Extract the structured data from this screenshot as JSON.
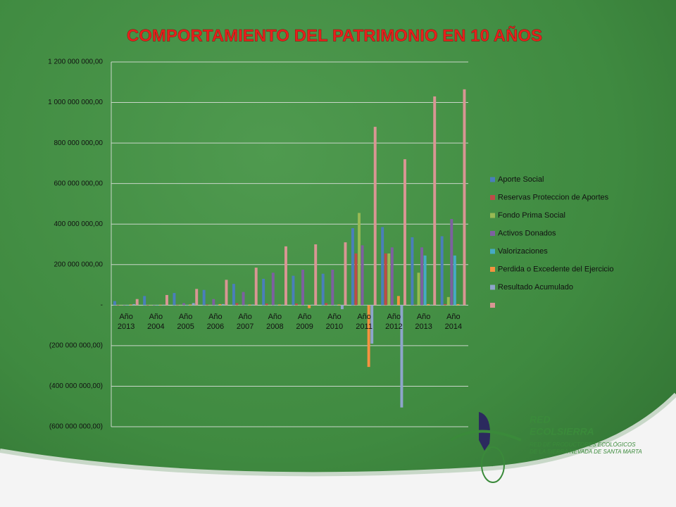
{
  "chart_data": {
    "type": "bar",
    "title": "COMPORTAMIENTO DEL PATRIMONIO EN 10 AÑOS",
    "categories": [
      "Año 2013",
      "Año 2004",
      "Año 2005",
      "Año 2006",
      "Año 2007",
      "Año 2008",
      "Año 2009",
      "Año 2010",
      "Año 2011",
      "Año 2012",
      "Año 2013",
      "Año 2014"
    ],
    "series": [
      {
        "name": "Aporte Social",
        "color": "#4a7ebb",
        "values": [
          20,
          45,
          60,
          75,
          105,
          130,
          145,
          155,
          380,
          385,
          335,
          340
        ]
      },
      {
        "name": "Reservas Proteccion de Aportes",
        "color": "#be4b48",
        "values": [
          1,
          1,
          2,
          3,
          10,
          8,
          8,
          10,
          255,
          255,
          2,
          5
        ]
      },
      {
        "name": "Fondo Prima Social",
        "color": "#98b954",
        "values": [
          0,
          0,
          0,
          0,
          0,
          0,
          0,
          0,
          455,
          255,
          160,
          40
        ]
      },
      {
        "name": "Activos Donados",
        "color": "#7d60a0",
        "values": [
          0,
          0,
          10,
          30,
          65,
          160,
          175,
          175,
          295,
          285,
          285,
          425
        ]
      },
      {
        "name": "Valorizaciones",
        "color": "#46aac5",
        "values": [
          0,
          0,
          0,
          0,
          0,
          0,
          0,
          0,
          0,
          0,
          245,
          245
        ]
      },
      {
        "name": "Perdida o Excedente del Ejercicio",
        "color": "#f69240",
        "values": [
          3,
          2,
          3,
          5,
          3,
          3,
          -15,
          3,
          -305,
          45,
          5,
          5
        ]
      },
      {
        "name": "Resultado Acumulado",
        "color": "#8ea5cb",
        "values": [
          5,
          2,
          10,
          5,
          3,
          2,
          2,
          -20,
          -190,
          -505,
          2,
          2
        ]
      },
      {
        "name": null,
        "color": "#d99694",
        "values": [
          30,
          50,
          80,
          125,
          185,
          290,
          300,
          310,
          880,
          720,
          1030,
          1065
        ]
      }
    ],
    "ylim": [
      -600,
      1200
    ],
    "yticks": [
      {
        "value": -600,
        "label": "(600 000 000,00)"
      },
      {
        "value": -400,
        "label": "(400 000 000,00)"
      },
      {
        "value": -200,
        "label": "(200 000 000,00)"
      },
      {
        "value": 0,
        "label": "-"
      },
      {
        "value": 200,
        "label": "200 000 000,00"
      },
      {
        "value": 400,
        "label": "400 000 000,00"
      },
      {
        "value": 600,
        "label": "600 000 000,00"
      },
      {
        "value": 800,
        "label": "800 000 000,00"
      },
      {
        "value": 1000,
        "label": "1 000 000 000,00"
      },
      {
        "value": 1200,
        "label": "1 200 000 000,00"
      }
    ],
    "grid": true,
    "legend": "right"
  },
  "logo": {
    "name_1": "RED",
    "name_2": "ECOLSIERRA",
    "tagline_1": "RED DE PRODUCTORES ECOLÓGICOS",
    "tagline_2": "DE LA SIERRA NEVADA DE SANTA MARTA"
  }
}
